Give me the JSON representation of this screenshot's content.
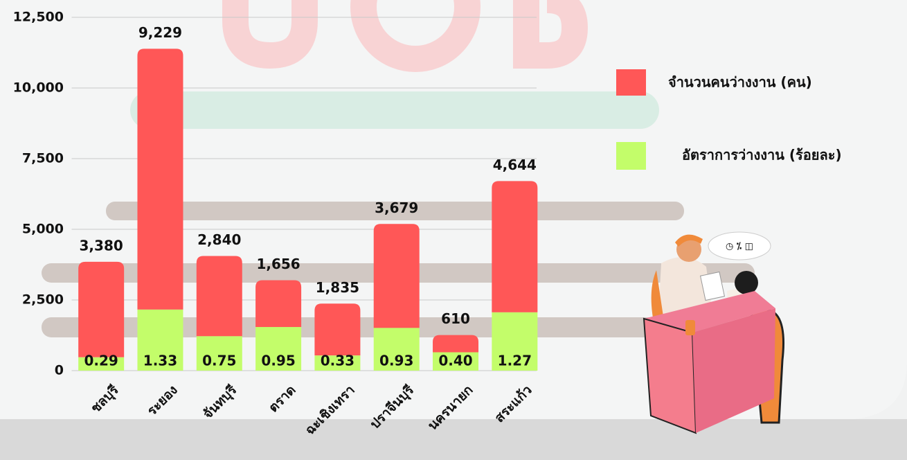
{
  "chart_data": {
    "type": "bar",
    "categories": [
      "ชลบุรี",
      "ระยอง",
      "จันทบุรี",
      "ตราด",
      "ฉะเชิงเทรา",
      "ปราจีนบุรี",
      "นครนายก",
      "สระแก้ว"
    ],
    "series": [
      {
        "name": "อัตราการว่างงาน (ร้อยละ)",
        "color": "#c3fd6a",
        "axis": "y2",
        "values": [
          0.29,
          1.33,
          0.75,
          0.95,
          0.33,
          0.93,
          0.4,
          1.27
        ],
        "value_labels": [
          "0.29",
          "1.33",
          "0.75",
          "0.95",
          "0.33",
          "0.93",
          "0.40",
          "1.27"
        ]
      },
      {
        "name": "จำนวนคนว่างงาน (คน)",
        "color": "#ff5757",
        "values": [
          3380,
          9229,
          2840,
          1656,
          1835,
          3679,
          610,
          4644
        ],
        "value_labels": [
          "3,380",
          "9,229",
          "2,840",
          "1,656",
          "1,835",
          "3,679",
          "610",
          "4,644"
        ]
      }
    ],
    "ylim": [
      0,
      12500
    ],
    "yticks": [
      0,
      {
        "value": 2500,
        "label": "2,500"
      },
      {
        "value": 5000,
        "label": "5,000"
      },
      {
        "value": 7500,
        "label": "7,500"
      },
      {
        "value": 10000,
        "label": "10,000"
      },
      {
        "value": 12500,
        "label": "12,500"
      }
    ],
    "y2lim": [
      0,
      7.7
    ],
    "grid": true
  }
}
